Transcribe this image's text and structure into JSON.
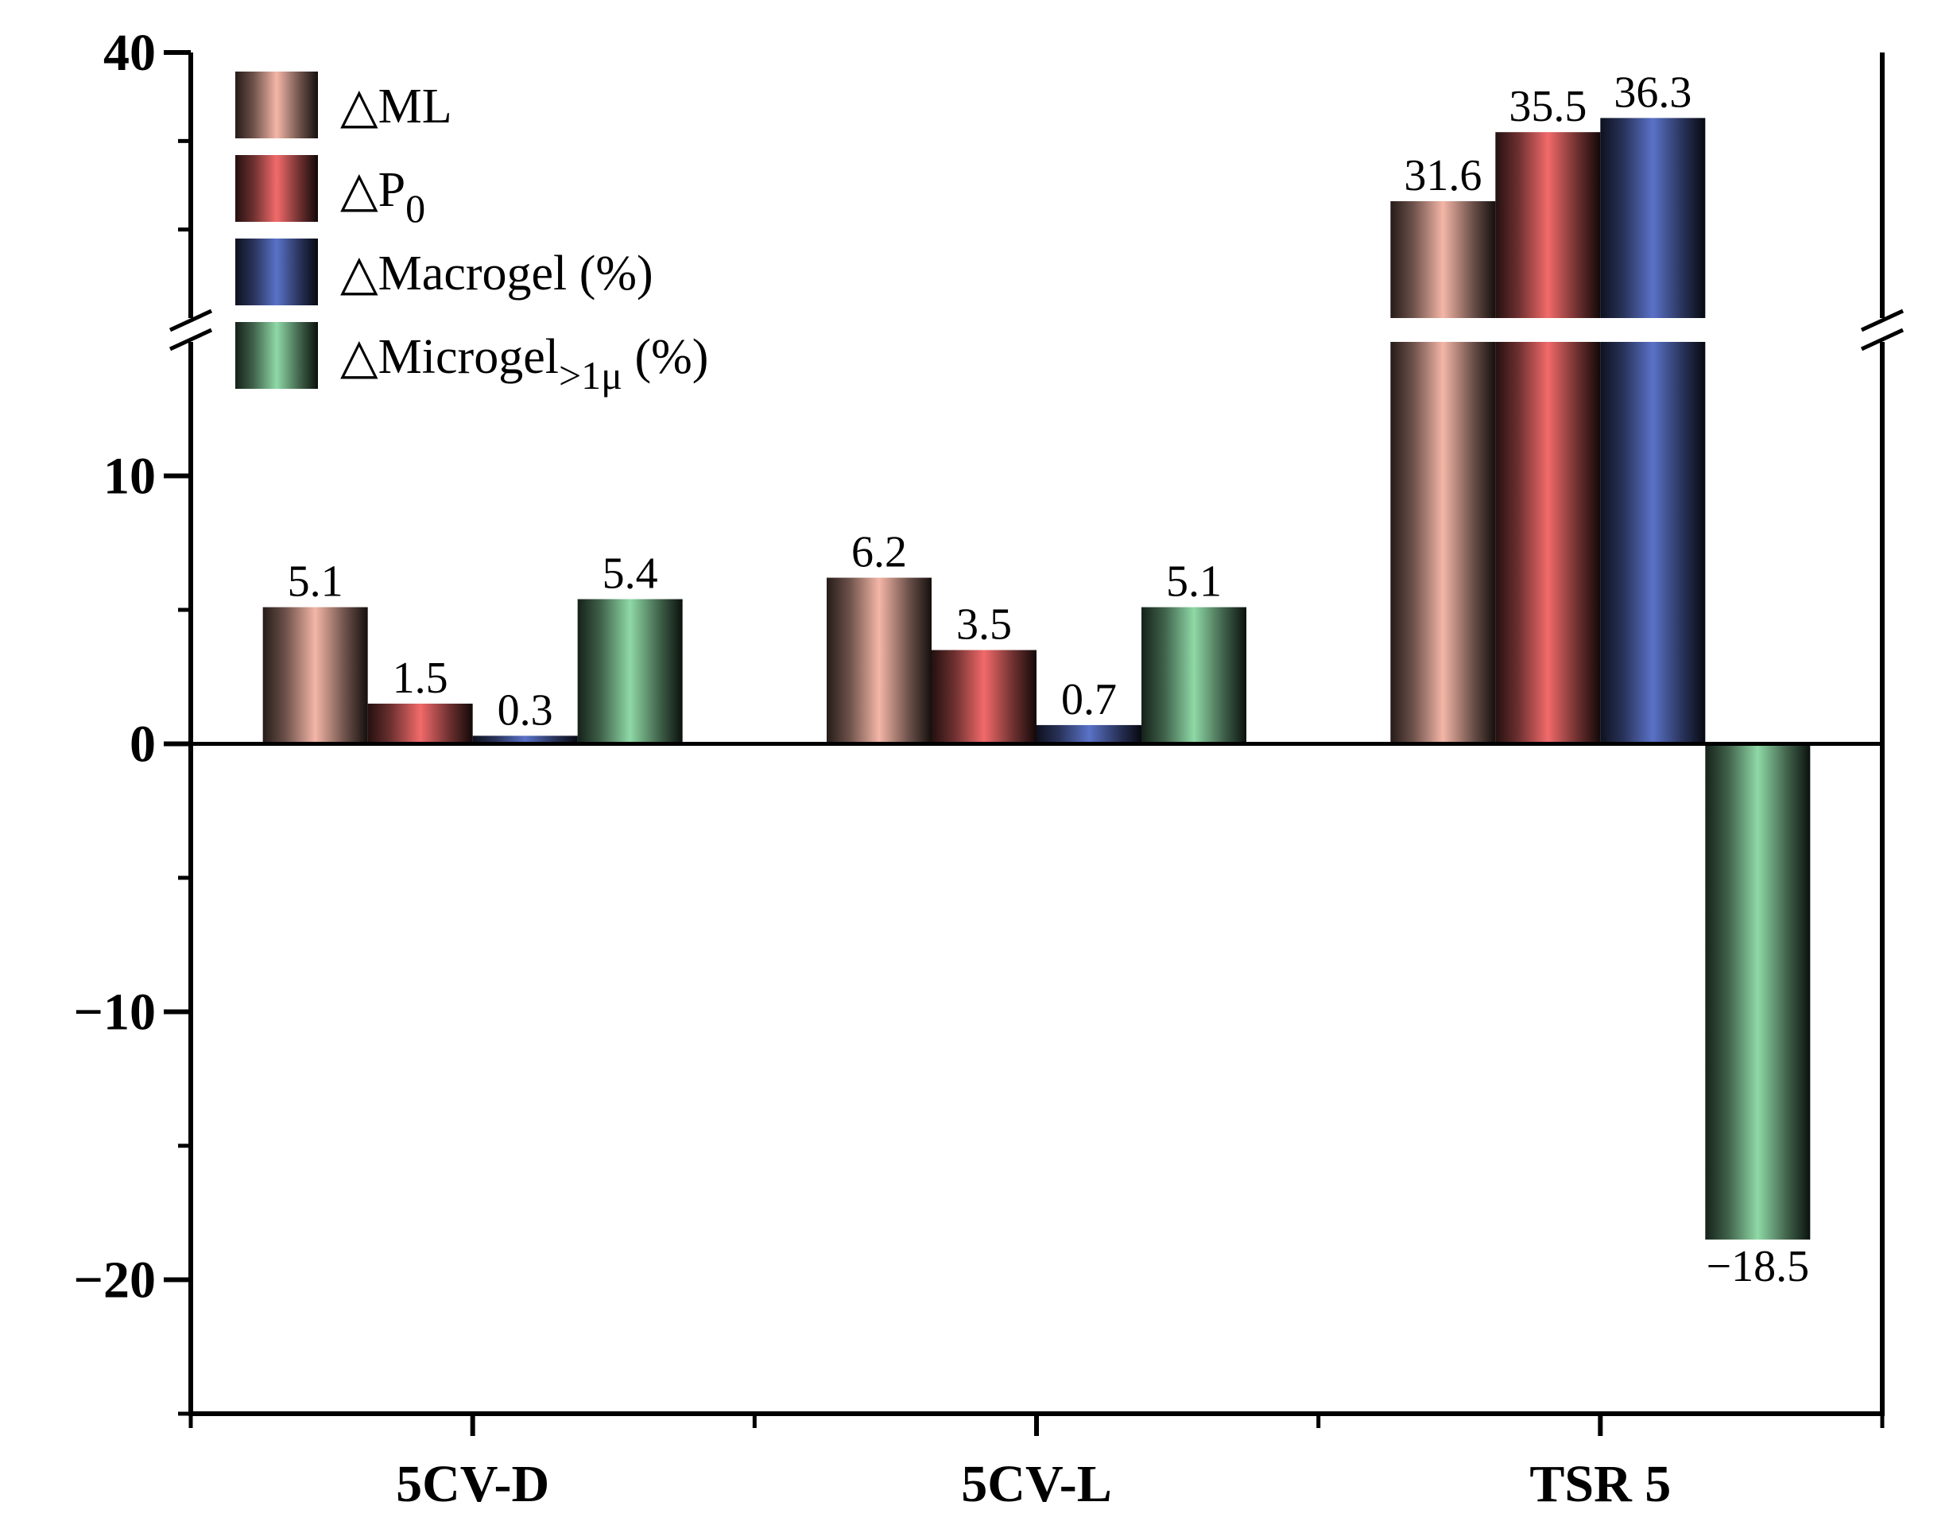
{
  "chart_data": {
    "type": "bar",
    "title": "",
    "xlabel": "",
    "ylabel": "",
    "categories": [
      "5CV-D",
      "5CV-L",
      "TSR 5"
    ],
    "series": [
      {
        "name": "ML",
        "legend_prefix": "△",
        "legend_sub": "",
        "legend_suffix": "",
        "color": "#f4b6a7",
        "values": [
          5.1,
          6.2,
          31.6
        ],
        "labels": [
          "5.1",
          "6.2",
          "31.6"
        ]
      },
      {
        "name": "P",
        "legend_prefix": "△",
        "legend_sub": "0",
        "legend_suffix": "",
        "color": "#f26a6a",
        "values": [
          1.5,
          3.5,
          35.5
        ],
        "labels": [
          "1.5",
          "3.5",
          "35.5"
        ]
      },
      {
        "name": "Macrogel (%)",
        "legend_prefix": "△",
        "legend_sub": "",
        "legend_suffix": "",
        "color": "#5a72c8",
        "values": [
          0.3,
          0.7,
          36.3
        ],
        "labels": [
          "0.3",
          "0.7",
          "36.3"
        ]
      },
      {
        "name": "Microgel",
        "legend_prefix": "△",
        "legend_sub": ">1μ",
        "legend_suffix": " (%)",
        "color": "#8fd9a6",
        "values": [
          5.4,
          5.1,
          -18.5
        ],
        "labels": [
          "5.4",
          "5.1",
          "−18.5"
        ]
      }
    ],
    "yaxis": {
      "ticks": [
        {
          "value": 40,
          "label": "40"
        },
        {
          "value": 10,
          "label": "10"
        },
        {
          "value": 0,
          "label": "0"
        },
        {
          "value": -10,
          "label": "−10"
        },
        {
          "value": -20,
          "label": "−20"
        }
      ],
      "lower_segment": [
        -25,
        15
      ],
      "upper_segment": [
        25,
        40
      ],
      "break": true
    },
    "legend_position": "top-left",
    "grid": false
  }
}
